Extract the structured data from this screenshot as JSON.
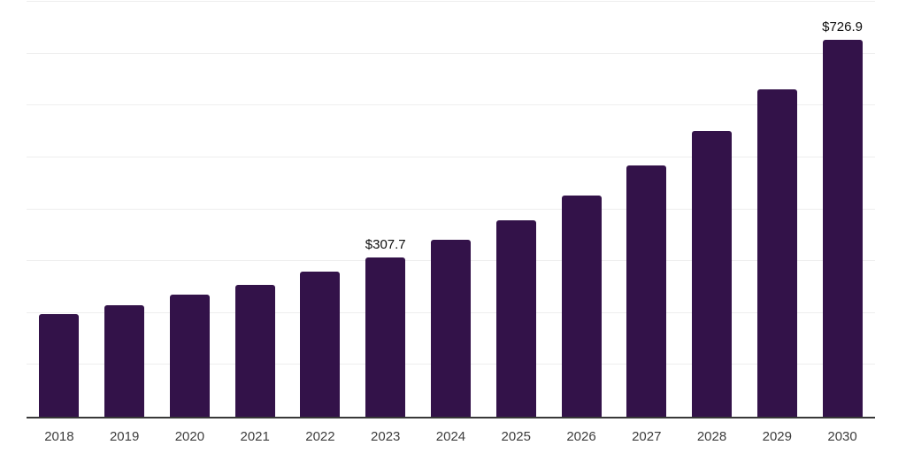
{
  "chart_data": {
    "type": "bar",
    "title": "",
    "xlabel": "",
    "ylabel": "",
    "categories": [
      "2018",
      "2019",
      "2020",
      "2021",
      "2022",
      "2023",
      "2024",
      "2025",
      "2026",
      "2027",
      "2028",
      "2029",
      "2030"
    ],
    "values": [
      198,
      215,
      236,
      255,
      279,
      307.7,
      341,
      378,
      427,
      485,
      551,
      632,
      726.9
    ],
    "value_labels": [
      {
        "category": "2023",
        "text": "$307.7"
      },
      {
        "category": "2030",
        "text": "$726.9"
      }
    ],
    "ylim": [
      0,
      800
    ],
    "gridline_step": 100,
    "grid": "horizontal-only",
    "legend_position": "none",
    "colors": {
      "bar": "#331249",
      "axis_line": "#383838",
      "gridline": "#eeeeee",
      "value_label_text": "#0e0e0e",
      "tick_label_text": "#3d3d3d",
      "background": "#ffffff"
    }
  }
}
